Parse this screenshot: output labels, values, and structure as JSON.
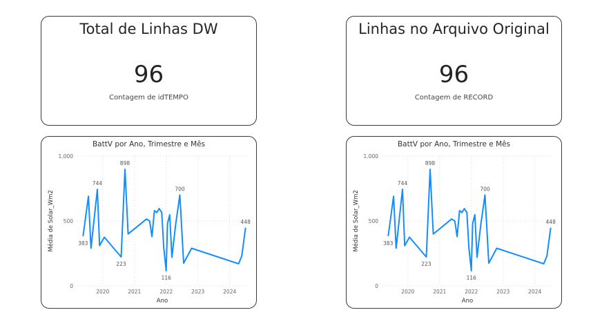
{
  "cards": [
    {
      "title": "Total de Linhas DW",
      "value": "96",
      "label": "Contagem de idTEMPO"
    },
    {
      "title": "Linhas no Arquivo Original",
      "value": "96",
      "label": "Contagem de RECORD"
    }
  ],
  "chart_data": [
    {
      "type": "line",
      "title": "BattV por Ano, Trimestre e Mês",
      "xlabel": "Ano",
      "ylabel": "Média de Solar_Wm2",
      "ylim": [
        0,
        1000
      ],
      "xlim": [
        2019.2,
        2024.55
      ],
      "yticks": [
        0,
        500,
        1000
      ],
      "yticklabels": [
        "0",
        "500",
        "1.000"
      ],
      "xticks": [
        2020,
        2021,
        2022,
        2023,
        2024
      ],
      "grid": true,
      "line_color": "#118DFF",
      "x": [
        2019.38,
        2019.55,
        2019.63,
        2019.83,
        2019.9,
        2020.05,
        2020.58,
        2020.7,
        2020.8,
        2021.38,
        2021.48,
        2021.55,
        2021.63,
        2021.7,
        2021.78,
        2021.86,
        2021.92,
        2022.0,
        2022.04,
        2022.11,
        2022.18,
        2022.3,
        2022.43,
        2022.55,
        2022.8,
        2024.28,
        2024.38,
        2024.5
      ],
      "values": [
        383,
        690,
        290,
        744,
        310,
        375,
        223,
        898,
        400,
        515,
        500,
        380,
        580,
        565,
        595,
        565,
        300,
        116,
        480,
        548,
        220,
        475,
        700,
        175,
        290,
        170,
        230,
        448
      ],
      "data_labels": [
        {
          "x": 2019.38,
          "y": 383,
          "text": "383",
          "pos": "below"
        },
        {
          "x": 2019.83,
          "y": 744,
          "text": "744",
          "pos": "above"
        },
        {
          "x": 2020.58,
          "y": 223,
          "text": "223",
          "pos": "below"
        },
        {
          "x": 2020.7,
          "y": 898,
          "text": "898",
          "pos": "above"
        },
        {
          "x": 2022.0,
          "y": 116,
          "text": "116",
          "pos": "below"
        },
        {
          "x": 2022.43,
          "y": 700,
          "text": "700",
          "pos": "above"
        },
        {
          "x": 2024.5,
          "y": 448,
          "text": "448",
          "pos": "above"
        }
      ]
    },
    {
      "type": "line",
      "title": "BattV por Ano, Trimestre e Mês",
      "xlabel": "Ano",
      "ylabel": "Média de Solar_Wm2",
      "ylim": [
        0,
        1000
      ],
      "xlim": [
        2019.2,
        2024.55
      ],
      "yticks": [
        0,
        500,
        1000
      ],
      "yticklabels": [
        "0",
        "500",
        "1.000"
      ],
      "xticks": [
        2020,
        2021,
        2022,
        2023,
        2024
      ],
      "grid": true,
      "line_color": "#118DFF",
      "x": [
        2019.38,
        2019.55,
        2019.63,
        2019.83,
        2019.9,
        2020.05,
        2020.58,
        2020.7,
        2020.8,
        2021.38,
        2021.48,
        2021.55,
        2021.63,
        2021.7,
        2021.78,
        2021.86,
        2021.92,
        2022.0,
        2022.04,
        2022.11,
        2022.18,
        2022.3,
        2022.43,
        2022.55,
        2022.8,
        2024.28,
        2024.38,
        2024.5
      ],
      "values": [
        383,
        690,
        290,
        744,
        310,
        375,
        223,
        898,
        400,
        515,
        500,
        380,
        580,
        565,
        595,
        565,
        300,
        116,
        480,
        548,
        220,
        475,
        700,
        175,
        290,
        170,
        230,
        448
      ],
      "data_labels": [
        {
          "x": 2019.38,
          "y": 383,
          "text": "383",
          "pos": "below"
        },
        {
          "x": 2019.83,
          "y": 744,
          "text": "744",
          "pos": "above"
        },
        {
          "x": 2020.58,
          "y": 223,
          "text": "223",
          "pos": "below"
        },
        {
          "x": 2020.7,
          "y": 898,
          "text": "898",
          "pos": "above"
        },
        {
          "x": 2022.0,
          "y": 116,
          "text": "116",
          "pos": "below"
        },
        {
          "x": 2022.43,
          "y": 700,
          "text": "700",
          "pos": "above"
        },
        {
          "x": 2024.5,
          "y": 448,
          "text": "448",
          "pos": "above"
        }
      ]
    }
  ]
}
